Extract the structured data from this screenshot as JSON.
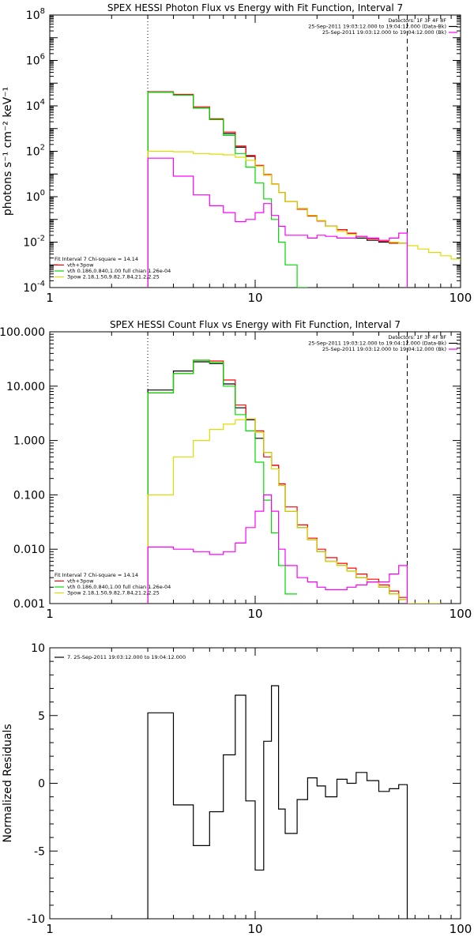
{
  "chart_data": [
    {
      "type": "line",
      "title": "SPEX HESSI Photon Flux vs Energy with Fit Function, Interval 7",
      "ylabel": "photons s⁻¹ cm⁻² keV⁻¹",
      "xlabel": "",
      "xscale": "log",
      "yscale": "log",
      "xlim": [
        1,
        100
      ],
      "ylim": [
        0.0001,
        100000000
      ],
      "xticks": [
        {
          "v": 1,
          "label": "1"
        },
        {
          "v": 10,
          "label": "10"
        },
        {
          "v": 100,
          "label": "100"
        }
      ],
      "yticks": [
        {
          "v": 0.0001,
          "label": "10",
          "sup": "-4"
        },
        {
          "v": 0.01,
          "label": "10",
          "sup": "-2"
        },
        {
          "v": 1,
          "label": "10",
          "sup": "0"
        },
        {
          "v": 100,
          "label": "10",
          "sup": "2"
        },
        {
          "v": 10000,
          "label": "10",
          "sup": "4"
        },
        {
          "v": 1000000,
          "label": "10",
          "sup": "6"
        },
        {
          "v": 100000000,
          "label": "10",
          "sup": "8"
        }
      ],
      "header": [
        "Detectors: 1F 3F 4F 8F",
        "25-Sep-2011 19:03:12.000 to 19:04:12.000 (Data-Bk)",
        "25-Sep-2011 19:03:12.000 to 19:04:12.000 (Bk)"
      ],
      "header_colors": [
        "#000000",
        "#ff00ff"
      ],
      "legend": [
        "Fit Interval 7   Chi-square = 14.14",
        "vth+3pow",
        "vth 0.186,0.840,1.00  full chian 1.26e-04",
        "3pow 2.18,1.50,9.82,7.84,21.2,2.25"
      ],
      "legend_colors": [
        "#000000",
        "#ff0000",
        "#00dd00",
        "#dddd00"
      ],
      "vlines": [
        {
          "x": 3,
          "style": "dotted"
        },
        {
          "x": 55,
          "style": "dashed"
        }
      ],
      "series": [
        {
          "key": "data",
          "color": "#000000",
          "edges": [
            3,
            4,
            5,
            6,
            7,
            8,
            9,
            10,
            11,
            12,
            13,
            14,
            16,
            18,
            20,
            22,
            25,
            28,
            31,
            35,
            40,
            45,
            50,
            55
          ],
          "values": [
            40000,
            30000,
            8000,
            2500,
            600,
            150,
            60,
            22,
            9,
            3.5,
            1.5,
            0.6,
            0.3,
            0.15,
            0.09,
            0.05,
            0.035,
            0.025,
            0.015,
            0.012,
            0.01,
            0.009,
            0.009
          ]
        },
        {
          "key": "fit",
          "color": "#ff0000",
          "edges": [
            3,
            4,
            5,
            6,
            7,
            8,
            9,
            10,
            11,
            12,
            13,
            14,
            16,
            18,
            20,
            22,
            25,
            28,
            31,
            35,
            40,
            45,
            50,
            55
          ],
          "values": [
            42000,
            32000,
            9000,
            2700,
            700,
            170,
            65,
            24,
            9.5,
            3.6,
            1.5,
            0.6,
            0.28,
            0.14,
            0.085,
            0.05,
            0.035,
            0.025,
            0.018,
            0.014,
            0.011,
            0.009,
            0.009
          ]
        },
        {
          "key": "vth",
          "color": "#00dd00",
          "edges": [
            3,
            4,
            5,
            6,
            7,
            8,
            9,
            10,
            11,
            12,
            13,
            14,
            16,
            18
          ],
          "values": [
            40000,
            30000,
            8000,
            2500,
            500,
            80,
            20,
            4,
            0.8,
            0.1,
            0.01,
            0.001,
            0.0001
          ]
        },
        {
          "key": "pow",
          "color": "#dddd00",
          "edges": [
            3,
            4,
            5,
            6,
            7,
            8,
            9,
            10,
            11,
            12,
            13,
            14,
            16,
            18,
            20,
            22,
            25,
            28,
            31,
            35,
            40,
            45,
            50,
            55,
            62,
            70,
            80,
            90,
            100
          ],
          "values": [
            100,
            95,
            80,
            75,
            70,
            55,
            40,
            22,
            9,
            3.5,
            1.5,
            0.6,
            0.3,
            0.15,
            0.09,
            0.05,
            0.03,
            0.022,
            0.018,
            0.015,
            0.012,
            0.01,
            0.009,
            0.007,
            0.005,
            0.0035,
            0.0025,
            0.0018
          ]
        },
        {
          "key": "bk",
          "color": "#ff00ff",
          "edges": [
            3,
            4,
            5,
            6,
            7,
            8,
            9,
            10,
            11,
            12,
            13,
            14,
            16,
            18,
            20,
            22,
            25,
            28,
            31,
            35,
            40,
            45,
            50,
            55
          ],
          "values": [
            50,
            8,
            1.2,
            0.4,
            0.2,
            0.08,
            0.1,
            0.2,
            0.5,
            0.15,
            0.05,
            0.02,
            0.02,
            0.015,
            0.02,
            0.018,
            0.015,
            0.015,
            0.018,
            0.015,
            0.012,
            0.015,
            0.025
          ],
          "drop_to_floor": true
        }
      ]
    },
    {
      "type": "line",
      "title": "SPEX HESSI Count Flux vs Energy with Fit Function, Interval 7",
      "ylabel": "",
      "xlabel": "",
      "xscale": "log",
      "yscale": "log",
      "xlim": [
        1,
        100
      ],
      "ylim": [
        0.001,
        100
      ],
      "xticks": [
        {
          "v": 1,
          "label": "1"
        },
        {
          "v": 10,
          "label": "10"
        },
        {
          "v": 100,
          "label": "100"
        }
      ],
      "yticks": [
        {
          "v": 0.001,
          "label": "0.001"
        },
        {
          "v": 0.01,
          "label": "0.010"
        },
        {
          "v": 0.1,
          "label": "0.100"
        },
        {
          "v": 1,
          "label": "1.000"
        },
        {
          "v": 10,
          "label": "10.000"
        },
        {
          "v": 100,
          "label": "100.000"
        }
      ],
      "header": [
        "Detectors: 1F 3F 4F 8F",
        "25-Sep-2011 19:03:12.000 to 19:04:12.000 (Data-Bk)",
        "25-Sep-2011 19:03:12.000 to 19:04:12.000 (Bk)"
      ],
      "header_colors": [
        "#000000",
        "#ff00ff"
      ],
      "legend": [
        "Fit Interval 7   Chi-square = 14.14",
        "vth+3pow",
        "vth 0.186,0.840,1.00  full chian 1.26e-04",
        "3pow 2.18,1.50,9.82,7.84,21.2,2.25"
      ],
      "legend_colors": [
        "#000000",
        "#ff0000",
        "#00dd00",
        "#dddd00"
      ],
      "vlines": [
        {
          "x": 3,
          "style": "dotted"
        },
        {
          "x": 55,
          "style": "dashed"
        }
      ],
      "series": [
        {
          "key": "data",
          "color": "#000000",
          "edges": [
            3,
            4,
            5,
            6,
            7,
            8,
            9,
            10,
            11,
            12,
            13,
            14,
            16,
            18,
            20,
            22,
            25,
            28,
            31,
            35,
            40,
            45,
            50,
            55
          ],
          "values": [
            8.5,
            19,
            28,
            26,
            11,
            4,
            2.4,
            1.1,
            0.6,
            0.35,
            0.15,
            0.05,
            0.025,
            0.015,
            0.009,
            0.006,
            0.005,
            0.004,
            0.003,
            0.0025,
            0.002,
            0.0015,
            0.0012
          ]
        },
        {
          "key": "fit",
          "color": "#ff0000",
          "edges": [
            3,
            4,
            5,
            6,
            7,
            8,
            9,
            10,
            11,
            12,
            13,
            14,
            16,
            18,
            20,
            22,
            25,
            28,
            31,
            35,
            40,
            45,
            50,
            55
          ],
          "values": [
            7.5,
            17,
            30,
            29,
            13,
            4.5,
            2.5,
            1.5,
            0.5,
            0.35,
            0.16,
            0.06,
            0.028,
            0.016,
            0.01,
            0.007,
            0.0055,
            0.0045,
            0.0035,
            0.0028,
            0.0022,
            0.0017,
            0.0013
          ]
        },
        {
          "key": "vth",
          "color": "#00dd00",
          "edges": [
            3,
            4,
            5,
            6,
            7,
            8,
            9,
            10,
            11,
            12,
            13,
            14,
            16
          ],
          "values": [
            7.5,
            17,
            30,
            27,
            10,
            3,
            1.5,
            0.4,
            0.08,
            0.02,
            0.005,
            0.0015
          ]
        },
        {
          "key": "pow",
          "color": "#dddd00",
          "edges": [
            3,
            4,
            5,
            6,
            7,
            8,
            9,
            10,
            11,
            12,
            13,
            14,
            16,
            18,
            20,
            22,
            25,
            28,
            31,
            35,
            40,
            45,
            50,
            55,
            62,
            70,
            80
          ],
          "values": [
            0.1,
            0.5,
            1.0,
            1.6,
            2.0,
            2.4,
            2.5,
            1.4,
            0.6,
            0.3,
            0.15,
            0.05,
            0.025,
            0.015,
            0.009,
            0.006,
            0.005,
            0.004,
            0.003,
            0.0025,
            0.002,
            0.0015,
            0.0012,
            0.001,
            0.0008,
            0.0006
          ]
        },
        {
          "key": "bk",
          "color": "#ff00ff",
          "edges": [
            3,
            4,
            5,
            6,
            7,
            8,
            9,
            10,
            11,
            12,
            13,
            14,
            16,
            18,
            20,
            22,
            25,
            28,
            31,
            35,
            40,
            45,
            50,
            55
          ],
          "values": [
            0.011,
            0.01,
            0.009,
            0.008,
            0.009,
            0.013,
            0.025,
            0.05,
            0.1,
            0.05,
            0.01,
            0.005,
            0.003,
            0.0025,
            0.002,
            0.0018,
            0.0018,
            0.002,
            0.0022,
            0.0025,
            0.0025,
            0.0035,
            0.005
          ],
          "drop_to_floor": true
        }
      ]
    },
    {
      "type": "line",
      "title": "",
      "ylabel": "Normalized Residuals",
      "xlabel": "",
      "xscale": "log",
      "yscale": "linear",
      "xlim": [
        1,
        100
      ],
      "ylim": [
        -10,
        10
      ],
      "xticks": [
        {
          "v": 1,
          "label": "1"
        },
        {
          "v": 10,
          "label": "10"
        },
        {
          "v": 100,
          "label": "100"
        }
      ],
      "yticks": [
        {
          "v": -10,
          "label": "-10"
        },
        {
          "v": -5,
          "label": "-5"
        },
        {
          "v": 0,
          "label": "0"
        },
        {
          "v": 5,
          "label": "5"
        },
        {
          "v": 10,
          "label": "10"
        }
      ],
      "legend": [
        "7. 25-Sep-2011 19:03:12.000 to 19:04:12.000"
      ],
      "legend_colors": [
        "#000000"
      ],
      "series": [
        {
          "key": "residuals",
          "color": "#000000",
          "edges": [
            3,
            4,
            5,
            6,
            7,
            8,
            9,
            10,
            11,
            12,
            13,
            14,
            16,
            18,
            20,
            22,
            25,
            28,
            31,
            35,
            40,
            45,
            50,
            55
          ],
          "values": [
            5.2,
            -1.6,
            -4.6,
            -2.1,
            2.1,
            6.5,
            -1.3,
            -6.4,
            3.1,
            7.2,
            -1.9,
            -3.7,
            -1.2,
            0.4,
            -0.2,
            -1.0,
            0.3,
            0.0,
            0.8,
            0.2,
            -0.6,
            -0.4,
            -0.1
          ],
          "drop_to_floor": true
        }
      ]
    }
  ]
}
